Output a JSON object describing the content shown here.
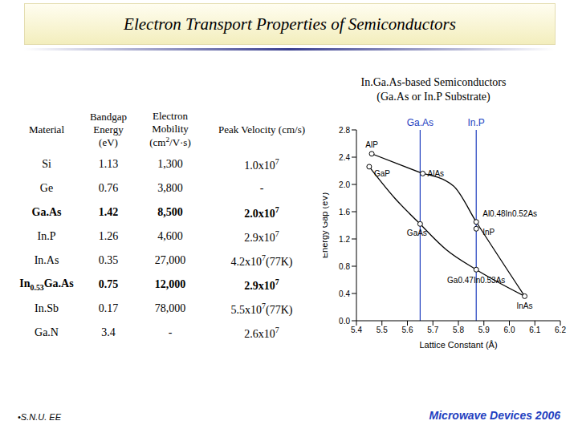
{
  "header": {
    "title": "Electron Transport Properties of Semiconductors"
  },
  "table": {
    "columns": [
      "Material",
      "Bandgap Energy (eV)",
      [
        "Electron Mobility (cm",
        {
          "sup": "2"
        },
        "/V·s)"
      ],
      "Peak Velocity (cm/s)"
    ],
    "rows": [
      {
        "cells": [
          "Si",
          "1.13",
          "1,300",
          [
            "1.0x10",
            {
              "sup": "7"
            }
          ]
        ]
      },
      {
        "cells": [
          "Ge",
          "0.76",
          "3,800",
          "-"
        ]
      },
      {
        "cells": [
          "Ga.As",
          "1.42",
          "8,500",
          [
            "2.0x10",
            {
              "sup": "7"
            }
          ]
        ],
        "bold": true
      },
      {
        "cells": [
          "In.P",
          "1.26",
          "4,600",
          [
            "2.9x10",
            {
              "sup": "7"
            }
          ]
        ]
      },
      {
        "cells": [
          "In.As",
          "0.35",
          "27,000",
          [
            "4.2x10",
            {
              "sup": "7"
            },
            "(77K)"
          ]
        ]
      },
      {
        "cells": [
          [
            "In",
            {
              "sub": "0.53"
            },
            "Ga.As"
          ],
          "0.75",
          "12,000",
          [
            "2.9x10",
            {
              "sup": "7"
            }
          ]
        ],
        "bold": true
      },
      {
        "cells": [
          "In.Sb",
          "0.17",
          "78,000",
          [
            "5.5x10",
            {
              "sup": "7"
            },
            "(77K)"
          ]
        ]
      },
      {
        "cells": [
          "Ga.N",
          "3.4",
          "-",
          [
            "2.6x10",
            {
              "sup": "7"
            }
          ]
        ]
      }
    ]
  },
  "chart_data": {
    "type": "line",
    "title": "In.Ga.As-based Semiconductors",
    "subtitle": "(Ga.As or In.P Substrate)",
    "x_label": "Lattice Constant (Å)",
    "y_label": "Energy Gap (eV)",
    "xlim": [
      5.4,
      6.2
    ],
    "xticks": [
      5.4,
      5.5,
      5.6,
      5.7,
      5.8,
      5.9,
      {
        "value": 6,
        "label": "6.0"
      },
      6.1,
      6.2
    ],
    "ylim": [
      0,
      2.8
    ],
    "yticks": [
      {
        "value": 0,
        "label": "0.0"
      },
      0.4,
      0.8,
      1.2,
      1.6,
      {
        "value": 2,
        "label": "2.0"
      },
      2.4,
      2.8
    ],
    "series": [
      {
        "color": "#000000",
        "x": [
          5.46,
          5.66
        ],
        "values": [
          2.45,
          2.16
        ]
      },
      {
        "color": "#000000",
        "x": [
          5.45,
          5.55,
          5.65
        ],
        "values": [
          2.26,
          1.8,
          1.42
        ]
      },
      {
        "color": "#000000",
        "x": [
          5.66,
          5.78,
          5.87,
          6.06
        ],
        "values": [
          2.16,
          1.98,
          1.45,
          0.36
        ]
      },
      {
        "color": "#000000",
        "x": [
          5.65,
          5.75,
          5.87,
          6.06
        ],
        "values": [
          1.42,
          1.05,
          0.75,
          0.36
        ]
      },
      {
        "type": "scatter",
        "marker": "circle",
        "color": "#000000",
        "x": [
          5.46,
          5.45,
          5.66,
          5.65,
          5.87,
          6.06,
          5.87,
          5.87
        ],
        "values": [
          2.45,
          2.26,
          2.16,
          1.42,
          1.35,
          0.36,
          1.45,
          0.75
        ],
        "labels": [
          "AlP",
          "GaP",
          "AlAs",
          "GaAs",
          "InP",
          "InAs",
          "Al0.48In0.52As",
          "Ga0.47In0.53As"
        ]
      }
    ],
    "reference_lines": [
      {
        "x": 5.65,
        "label": "Ga.As",
        "color": "#1f3fbf"
      },
      {
        "x": 5.87,
        "label": "In.P",
        "color": "#1f3fbf"
      }
    ]
  },
  "footer": {
    "left": "•S.N.U. EE",
    "right": "Microwave Devices 2006"
  }
}
